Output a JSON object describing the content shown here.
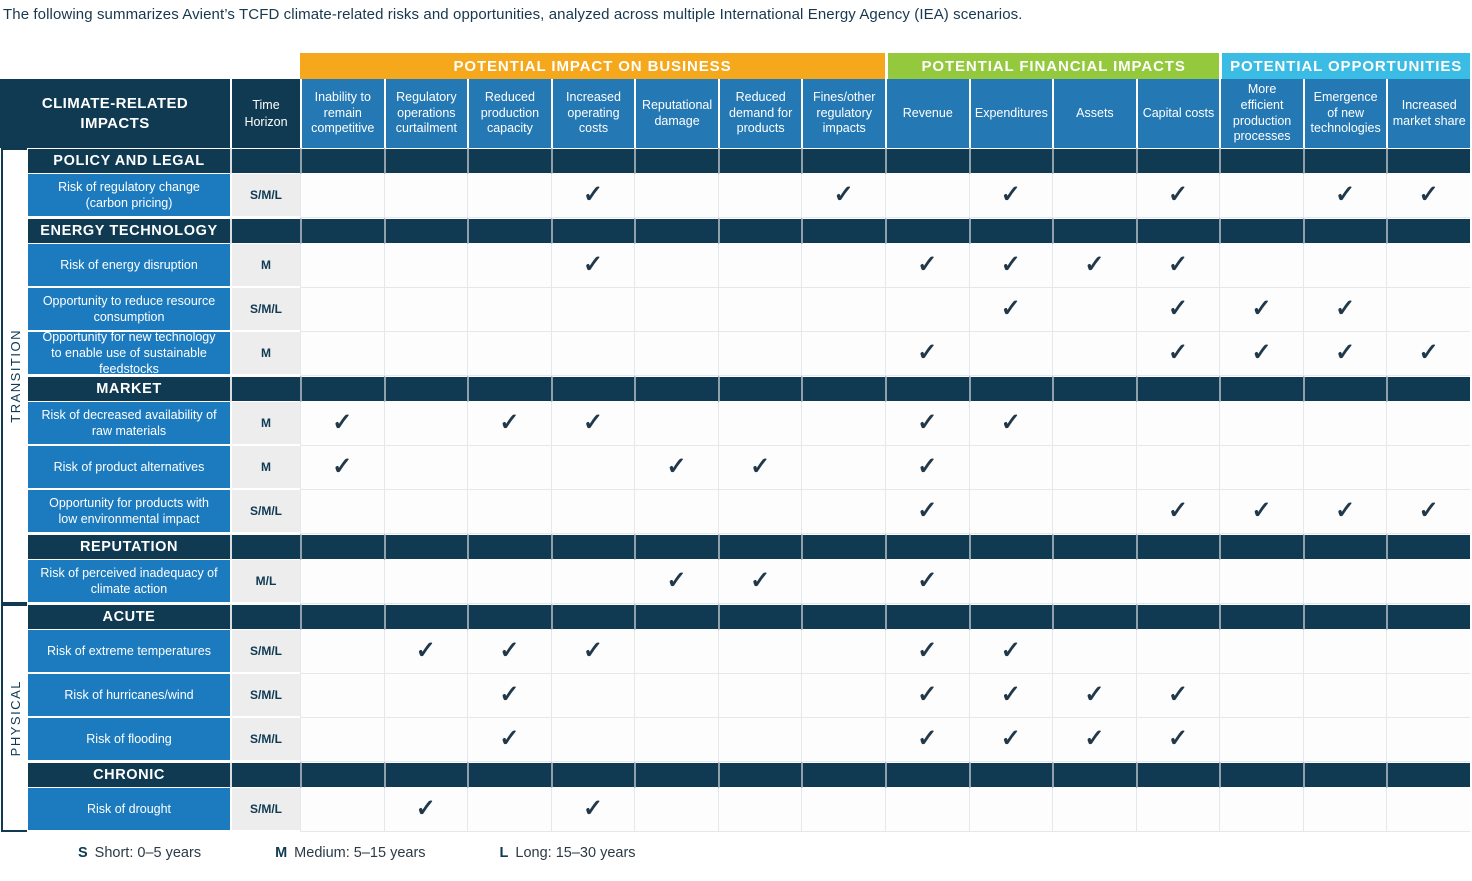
{
  "title": "The following summarizes Avient’s TCFD climate-related risks and opportunities, analyzed across multiple International Energy Agency (IEA) scenarios.",
  "icons": {
    "check": "✓"
  },
  "colors": {
    "navy": "#0F3A52",
    "row_label_blue": "#1C7BBE",
    "column_header_blue": "#2478B4",
    "time_cell_gray": "#EDEDED",
    "check_color": "#21384A"
  },
  "table": {
    "corner_header": "CLIMATE-RELATED IMPACTS",
    "time_header": "Time Horizon",
    "groups": [
      {
        "label": "POTENTIAL IMPACT ON BUSINESS",
        "color": "#F5A81C",
        "span": 7
      },
      {
        "label": "POTENTIAL FINANCIAL IMPACTS",
        "color": "#94C83D",
        "span": 4
      },
      {
        "label": "POTENTIAL OPPORTUNITIES",
        "color": "#3BBCE4",
        "span": 3
      }
    ],
    "columns": [
      "Inability to remain competitive",
      "Regulatory operations curtailment",
      "Reduced production capacity",
      "Increased operating costs",
      "Reputational damage",
      "Reduced demand for products",
      "Fines/other regulatory impacts",
      "Revenue",
      "Expenditures",
      "Assets",
      "Capital costs",
      "More efficient production processes",
      "Emergence of new technologies",
      "Increased market share"
    ],
    "categories": [
      {
        "label": "TRANSITION",
        "sections": [
          {
            "label": "POLICY AND LEGAL",
            "rows": [
              {
                "label": "Risk of regulatory change (carbon pricing)",
                "time": "S/M/L",
                "checks": [
                  4,
                  7,
                  9,
                  11,
                  13,
                  14
                ]
              }
            ]
          },
          {
            "label": "ENERGY TECHNOLOGY",
            "rows": [
              {
                "label": "Risk of energy disruption",
                "time": "M",
                "checks": [
                  4,
                  8,
                  9,
                  10,
                  11
                ]
              },
              {
                "label": "Opportunity to reduce resource consumption",
                "time": "S/M/L",
                "checks": [
                  9,
                  11,
                  12,
                  13
                ]
              },
              {
                "label": "Opportunity for new technology to enable use of sustainable feedstocks",
                "time": "M",
                "checks": [
                  8,
                  11,
                  12,
                  13,
                  14
                ]
              }
            ]
          },
          {
            "label": "MARKET",
            "rows": [
              {
                "label": "Risk of decreased availability of raw materials",
                "time": "M",
                "checks": [
                  1,
                  3,
                  4,
                  8,
                  9
                ]
              },
              {
                "label": "Risk of product alternatives",
                "time": "M",
                "checks": [
                  1,
                  5,
                  6,
                  8
                ]
              },
              {
                "label": "Opportunity for products with low environmental impact",
                "time": "S/M/L",
                "checks": [
                  8,
                  11,
                  12,
                  13,
                  14
                ]
              }
            ]
          },
          {
            "label": "REPUTATION",
            "rows": [
              {
                "label": "Risk of perceived inadequacy of climate action",
                "time": "M/L",
                "checks": [
                  5,
                  6,
                  8
                ]
              }
            ]
          }
        ]
      },
      {
        "label": "PHYSICAL",
        "sections": [
          {
            "label": "ACUTE",
            "rows": [
              {
                "label": "Risk of extreme temperatures",
                "time": "S/M/L",
                "checks": [
                  2,
                  3,
                  4,
                  8,
                  9
                ]
              },
              {
                "label": "Risk of hurricanes/wind",
                "time": "S/M/L",
                "checks": [
                  3,
                  8,
                  9,
                  10,
                  11
                ]
              },
              {
                "label": "Risk of flooding",
                "time": "S/M/L",
                "checks": [
                  3,
                  8,
                  9,
                  10,
                  11
                ]
              }
            ]
          },
          {
            "label": "CHRONIC",
            "rows": [
              {
                "label": "Risk of drought",
                "time": "S/M/L",
                "checks": [
                  2,
                  4
                ]
              }
            ]
          }
        ]
      }
    ]
  },
  "legend": {
    "items": [
      {
        "key": "S",
        "text": "Short: 0–5 years"
      },
      {
        "key": "M",
        "text": "Medium: 5–15 years"
      },
      {
        "key": "L",
        "text": "Long: 15–30 years"
      }
    ]
  }
}
